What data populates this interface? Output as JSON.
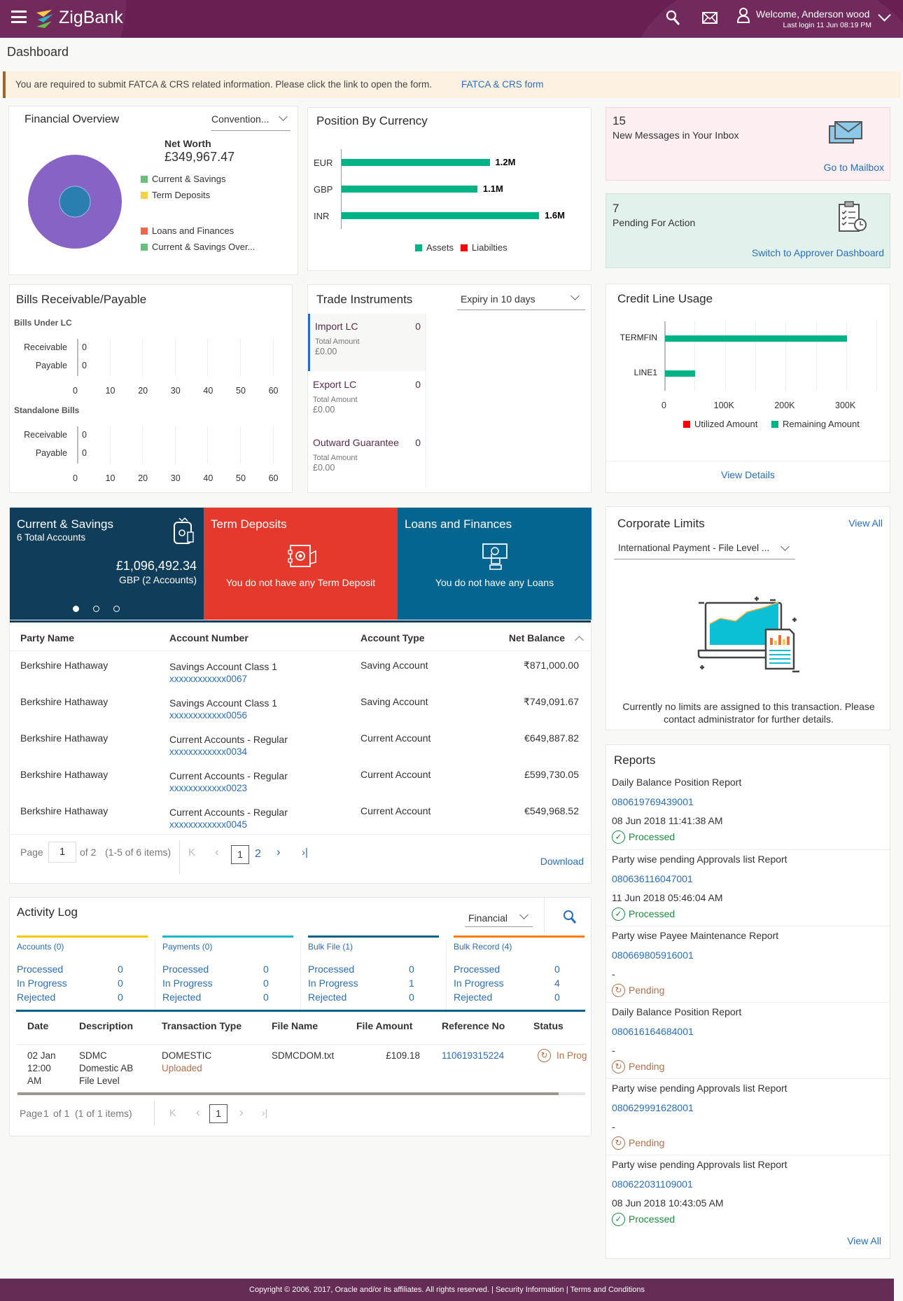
{
  "header": {
    "brand": "ZigBank",
    "welcome": "Welcome, Anderson wood",
    "last_login": "Last login 11 Jun 08:19 PM",
    "icons": [
      "menu-icon",
      "search-icon",
      "mail-icon",
      "user-icon",
      "chevron-down-icon"
    ],
    "color": "#6a1f53"
  },
  "page_title": "Dashboard",
  "alert": {
    "text": "You are required to submit FATCA & CRS related information. Please click the link to open the form.",
    "link": "FATCA & CRS form"
  },
  "financial_overview": {
    "title": "Financial Overview",
    "dropdown": "Convention...",
    "net_worth_label": "Net Worth",
    "net_worth": "£349,967.47",
    "legend": [
      {
        "label": "Current & Savings",
        "color": "#6abf7b"
      },
      {
        "label": "Term Deposits",
        "color": "#f7d04a"
      },
      {
        "label": "Loans and Finances",
        "color": "#ec6a4c"
      },
      {
        "label": "Current & Savings Over...",
        "color": "#6abf7b"
      }
    ],
    "donut_colors": {
      "outer": "#8763c6",
      "inner": "#2a7fb0"
    }
  },
  "inbox": {
    "count": "15",
    "label": "New Messages in Your Inbox",
    "link": "Go to Mailbox"
  },
  "pending": {
    "count": "7",
    "label": "Pending For Action",
    "link": "Switch to Approver Dashboard"
  },
  "bills": {
    "title": "Bills Receivable/Payable",
    "groups": [
      {
        "label": "Bills Under LC",
        "rows": [
          {
            "label": "Receivable",
            "value": "0"
          },
          {
            "label": "Payable",
            "value": "0"
          }
        ]
      },
      {
        "label": "Standalone Bills",
        "rows": [
          {
            "label": "Receivable",
            "value": "0"
          },
          {
            "label": "Payable",
            "value": "0"
          }
        ]
      }
    ]
  },
  "trade": {
    "title": "Trade Instruments",
    "dropdown": "Expiry in 10 days",
    "items": [
      {
        "name": "Import LC",
        "count": "0",
        "sub": "Total Amount",
        "amount": "£0.00"
      },
      {
        "name": "Export LC",
        "count": "0",
        "sub": "Total Amount",
        "amount": "£0.00"
      },
      {
        "name": "Outward Guarantee",
        "count": "0",
        "sub": "Total Amount",
        "amount": "£0.00"
      }
    ]
  },
  "credit": {
    "title": "Credit Line Usage",
    "view_details": "View Details"
  },
  "chart_data": [
    {
      "type": "bar",
      "orientation": "horizontal",
      "title": "Position By Currency",
      "categories": [
        "EUR",
        "GBP",
        "INR"
      ],
      "series": [
        {
          "name": "Assets",
          "values": [
            1.2,
            1.1,
            1.6
          ],
          "color": "#00b386"
        },
        {
          "name": "Liabilties",
          "values": [
            0,
            0,
            0
          ],
          "color": "#ff0000"
        }
      ],
      "data_labels": [
        "1.2M",
        "1.1M",
        "1.6M"
      ],
      "unit": "M",
      "xlim": [
        0,
        1.6
      ],
      "legend": "bottom"
    },
    {
      "type": "bar",
      "orientation": "horizontal",
      "title": "Bills Under LC",
      "categories": [
        "Receivable",
        "Payable"
      ],
      "values": [
        0,
        0
      ],
      "ticks": [
        "0",
        "10",
        "20",
        "30",
        "40",
        "50",
        "60"
      ],
      "xlim": [
        0,
        60
      ],
      "grid": true
    },
    {
      "type": "bar",
      "orientation": "horizontal",
      "title": "Standalone Bills",
      "categories": [
        "Receivable",
        "Payable"
      ],
      "values": [
        0,
        0
      ],
      "ticks": [
        "0",
        "10",
        "20",
        "30",
        "40",
        "50",
        "60"
      ],
      "xlim": [
        0,
        60
      ],
      "grid": true
    },
    {
      "type": "bar",
      "orientation": "horizontal",
      "stacked": true,
      "title": "Credit Line Usage",
      "categories": [
        "TERMFIN",
        "LINE1"
      ],
      "series": [
        {
          "name": "Utilized Amount",
          "values": [
            0,
            0
          ],
          "color": "#ff0000"
        },
        {
          "name": "Remaining Amount",
          "values": [
            300000,
            50000
          ],
          "color": "#00b386"
        }
      ],
      "ticks": [
        "0",
        "100K",
        "200K",
        "300K"
      ],
      "xlim": [
        0,
        350000
      ],
      "grid": true,
      "legend": "bottom"
    }
  ],
  "summary_tiles": [
    {
      "title": "Current & Savings",
      "sub": "6 Total Accounts",
      "amount": "£1,096,492.34",
      "amount_sub": "GBP (2 Accounts)",
      "color": "#0f3d5a"
    },
    {
      "title": "Term Deposits",
      "message": "You do not have any Term Deposit",
      "color": "#e4392c"
    },
    {
      "title": "Loans and Finances",
      "message": "You do not have any Loans",
      "color": "#046690"
    }
  ],
  "carousel": {
    "count": 3,
    "active": 0
  },
  "accounts_table": {
    "headers": [
      "Party Name",
      "Account Number",
      "Account Type",
      "Net Balance"
    ],
    "rows": [
      {
        "party": "Berkshire Hathaway",
        "product": "Savings Account Class 1",
        "number": "xxxxxxxxxxxx0067",
        "type": "Saving Account",
        "balance": "₹871,000.00"
      },
      {
        "party": "Berkshire Hathaway",
        "product": "Savings Account Class 1",
        "number": "xxxxxxxxxxxx0056",
        "type": "Saving Account",
        "balance": "₹749,091.67"
      },
      {
        "party": "Berkshire Hathaway",
        "product": "Current Accounts - Regular",
        "number": "xxxxxxxxxxxx0034",
        "type": "Current Account",
        "balance": "€649,887.82"
      },
      {
        "party": "Berkshire Hathaway",
        "product": "Current Accounts - Regular",
        "number": "xxxxxxxxxxxx0023",
        "type": "Current Account",
        "balance": "£599,730.05"
      },
      {
        "party": "Berkshire Hathaway",
        "product": "Current Accounts - Regular",
        "number": "xxxxxxxxxxxx0045",
        "type": "Current Account",
        "balance": "€549,968.52"
      }
    ],
    "pagination": {
      "page_label": "Page",
      "page": "1",
      "of": "of 2",
      "items": "(1-5 of 6 items)",
      "pages": [
        "1",
        "2"
      ]
    },
    "download": "Download"
  },
  "corporate_limits": {
    "title": "Corporate Limits",
    "view_all": "View All",
    "dropdown": "International Payment - File Level ...",
    "message": "Currently no limits are assigned to this transaction. Please contact administrator for further details."
  },
  "activity_log": {
    "title": "Activity Log",
    "dropdown": "Financial",
    "groups": [
      {
        "label": "Accounts (0)",
        "color": "#ffc800",
        "processed": "0",
        "in_progress": "0",
        "rejected": "0"
      },
      {
        "label": "Payments (0)",
        "color": "#1ab7cc",
        "processed": "0",
        "in_progress": "0",
        "rejected": "0"
      },
      {
        "label": "Bulk File (1)",
        "color": "#0b6487",
        "processed": "0",
        "in_progress": "1",
        "rejected": "0"
      },
      {
        "label": "Bulk Record (4)",
        "color": "#ff7a00",
        "processed": "0",
        "in_progress": "4",
        "rejected": "0"
      }
    ],
    "status_labels": {
      "processed": "Processed",
      "in_progress": "In Progress",
      "rejected": "Rejected"
    },
    "headers": [
      "Date",
      "Description",
      "Transaction Type",
      "File Name",
      "File Amount",
      "Reference No",
      "Status"
    ],
    "rows": [
      {
        "date": [
          "02 Jan",
          "12:00",
          "AM"
        ],
        "desc": [
          "SDMC",
          "Domestic AB",
          "File Level"
        ],
        "txn_type": "DOMESTIC",
        "txn_sub": "Uploaded",
        "file": "SDMCDOM.txt",
        "amount": "£109.18",
        "ref": "110619315224",
        "status": "In Prog"
      }
    ],
    "pagination": {
      "page_label": "Page",
      "page": "1",
      "of": "of 1",
      "items": "(1 of 1 items)",
      "pages": [
        "1"
      ]
    }
  },
  "reports": {
    "title": "Reports",
    "view_all": "View All",
    "items": [
      {
        "name": "Daily Balance Position Report",
        "id": "080619769439001",
        "date": "08 Jun 2018 11:41:38 AM",
        "status": "Processed"
      },
      {
        "name": "Party wise pending Approvals list Report",
        "id": "080636116047001",
        "date": "11 Jun 2018 05:46:04 AM",
        "status": "Processed"
      },
      {
        "name": "Party wise Payee Maintenance Report",
        "id": "080669805916001",
        "date": "-",
        "status": "Pending"
      },
      {
        "name": "Daily Balance Position Report",
        "id": "080616164684001",
        "date": "-",
        "status": "Pending"
      },
      {
        "name": "Party wise pending Approvals list Report",
        "id": "080629991628001",
        "date": "-",
        "status": "Pending"
      },
      {
        "name": "Party wise pending Approvals list Report",
        "id": "080622031109001",
        "date": "08 Jun 2018 10:43:05 AM",
        "status": "Processed"
      }
    ]
  },
  "footer": {
    "copyright": "Copyright © 2006, 2017, Oracle and/or its affiliates. All rights reserved.",
    "security": "Security Information",
    "terms": "Terms and Conditions"
  }
}
